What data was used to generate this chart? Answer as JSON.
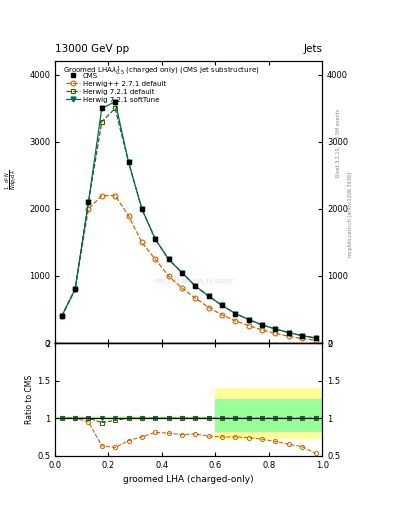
{
  "title_top": "13000 GeV pp",
  "title_right": "Jets",
  "plot_title": "Groomed LHA$\\lambda^{1}_{0.5}$ (charged only) (CMS jet substructure)",
  "ylabel_main": "$\\frac{1}{\\sigma}\\frac{\\mathrm{d}\\sigma}{\\mathrm{d}\\lambda}$",
  "ylabel_ratio": "Ratio to CMS",
  "xlabel": "groomed LHA (charged-only)",
  "right_label": "mcplots.cern.ch [arXiv:1306.3436]",
  "right_label2": "Rivet 3.1.10, ≥ 3.5M events",
  "watermark": "CMS_2021_PAS_FSQ_19_020187",
  "x": [
    0.025,
    0.075,
    0.125,
    0.175,
    0.225,
    0.275,
    0.325,
    0.375,
    0.425,
    0.475,
    0.525,
    0.575,
    0.625,
    0.675,
    0.725,
    0.775,
    0.825,
    0.875,
    0.925,
    0.975
  ],
  "cms_y": [
    400,
    800,
    2100,
    3500,
    3600,
    2700,
    2000,
    1550,
    1250,
    1050,
    850,
    700,
    560,
    440,
    350,
    270,
    210,
    155,
    110,
    75
  ],
  "herwig_pp_y": [
    400,
    800,
    2000,
    2200,
    2200,
    1900,
    1500,
    1250,
    1000,
    820,
    670,
    530,
    420,
    330,
    260,
    195,
    145,
    100,
    68,
    40
  ],
  "herwig721_default_y": [
    400,
    800,
    2100,
    3300,
    3500,
    2700,
    2000,
    1550,
    1250,
    1050,
    850,
    700,
    560,
    440,
    350,
    270,
    210,
    155,
    110,
    75
  ],
  "herwig721_soft_y": [
    400,
    800,
    2100,
    3500,
    3600,
    2700,
    2000,
    1550,
    1250,
    1050,
    850,
    700,
    560,
    440,
    350,
    270,
    210,
    155,
    110,
    75
  ],
  "ratio_herwig_pp": [
    1.0,
    1.0,
    0.95,
    0.63,
    0.61,
    0.7,
    0.75,
    0.81,
    0.8,
    0.78,
    0.79,
    0.76,
    0.75,
    0.75,
    0.74,
    0.72,
    0.69,
    0.65,
    0.62,
    0.53
  ],
  "ratio_herwig721_default": [
    1.0,
    1.0,
    1.0,
    0.94,
    0.97,
    1.0,
    1.0,
    1.0,
    1.0,
    1.0,
    1.0,
    1.0,
    1.0,
    1.0,
    1.0,
    1.0,
    1.0,
    1.0,
    1.0,
    1.0
  ],
  "ratio_herwig721_soft": [
    1.0,
    1.0,
    1.0,
    1.0,
    1.0,
    1.0,
    1.0,
    1.0,
    1.0,
    1.0,
    1.0,
    1.0,
    1.0,
    1.0,
    1.0,
    1.0,
    1.0,
    1.0,
    1.0,
    1.0
  ],
  "band_yellow_low": [
    0.97,
    0.97,
    0.97,
    0.97,
    0.97,
    0.97,
    0.97,
    0.97,
    0.97,
    0.97,
    0.97,
    0.97,
    0.72,
    0.72,
    0.72,
    0.72,
    0.72,
    0.72,
    0.72,
    0.72
  ],
  "band_yellow_high": [
    1.03,
    1.03,
    1.03,
    1.03,
    1.03,
    1.03,
    1.03,
    1.03,
    1.03,
    1.03,
    1.03,
    1.03,
    1.4,
    1.4,
    1.4,
    1.4,
    1.4,
    1.4,
    1.4,
    1.4
  ],
  "band_green_low": [
    0.99,
    0.99,
    0.99,
    0.99,
    0.99,
    0.99,
    0.99,
    0.99,
    0.99,
    0.99,
    0.99,
    0.99,
    0.82,
    0.82,
    0.82,
    0.82,
    0.82,
    0.82,
    0.82,
    0.82
  ],
  "band_green_high": [
    1.01,
    1.01,
    1.01,
    1.01,
    1.01,
    1.01,
    1.01,
    1.01,
    1.01,
    1.01,
    1.01,
    1.01,
    1.25,
    1.25,
    1.25,
    1.25,
    1.25,
    1.25,
    1.25,
    1.25
  ],
  "color_cms": "#000000",
  "color_herwig_pp": "#cc6600",
  "color_herwig721_default": "#336600",
  "color_herwig721_soft": "#006666",
  "color_yellow": "#ffff99",
  "color_green": "#99ff99",
  "ylim_main": [
    0,
    4200
  ],
  "ylim_ratio": [
    0.5,
    2.0
  ],
  "yticks_main": [
    0,
    1000,
    2000,
    3000,
    4000
  ],
  "yticks_ratio": [
    0.5,
    1.0,
    1.5,
    2.0
  ],
  "ytick_labels_ratio": [
    "0.5",
    "1",
    "1.5",
    "2"
  ]
}
